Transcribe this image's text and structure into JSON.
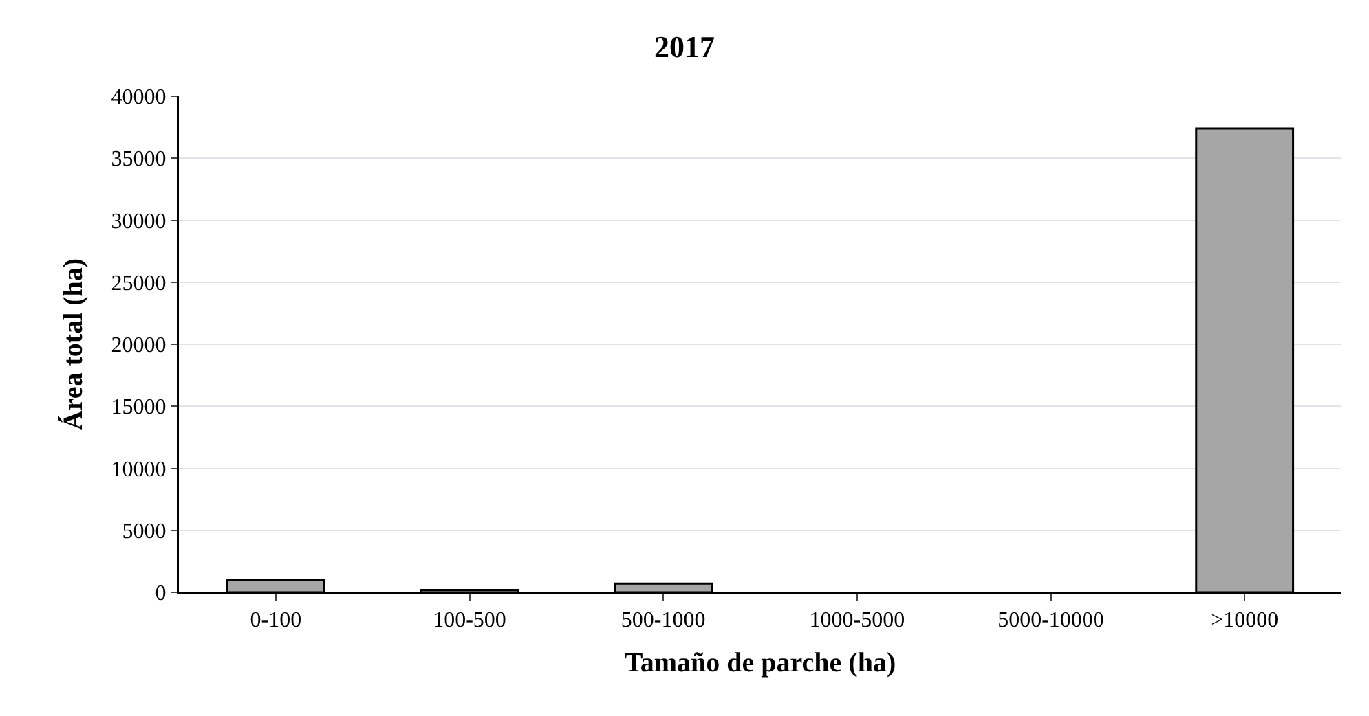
{
  "chart_data": {
    "type": "bar",
    "title": "2017",
    "xlabel": "Tamaño de parche (ha)",
    "ylabel": "Área total (ha)",
    "categories": [
      "0-100",
      "100-500",
      "500-1000",
      "1000-5000",
      "5000-10000",
      ">10000"
    ],
    "values": [
      1000,
      200,
      700,
      null,
      null,
      37400
    ],
    "color": "#a6a6a6",
    "ylim": [
      0,
      40000
    ],
    "yticks": [
      0,
      5000,
      10000,
      15000,
      20000,
      25000,
      30000,
      35000,
      40000
    ],
    "grid": "y"
  }
}
